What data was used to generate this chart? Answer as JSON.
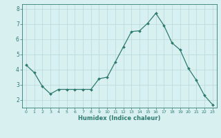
{
  "x": [
    0,
    1,
    2,
    3,
    4,
    5,
    6,
    7,
    8,
    9,
    10,
    11,
    12,
    13,
    14,
    15,
    16,
    17,
    18,
    19,
    20,
    21,
    22,
    23
  ],
  "y": [
    4.3,
    3.8,
    2.9,
    2.4,
    2.7,
    2.7,
    2.7,
    2.7,
    2.7,
    3.4,
    3.5,
    4.5,
    5.5,
    6.5,
    6.55,
    7.05,
    7.7,
    6.9,
    5.75,
    5.3,
    4.1,
    3.3,
    2.3,
    1.7
  ],
  "line_color": "#2d7a6e",
  "marker": "D",
  "markersize": 2.0,
  "linewidth": 0.9,
  "bg_color": "#d9f0f0",
  "grid_color": "#b8d8d8",
  "tick_color": "#2d7a6e",
  "label_color": "#2d7a6e",
  "xlabel": "Humidex (Indice chaleur)",
  "xlabel_fontsize": 6,
  "xlim": [
    -0.5,
    23.5
  ],
  "ylim": [
    1.5,
    8.3
  ],
  "yticks": [
    2,
    3,
    4,
    5,
    6,
    7,
    8
  ],
  "xticks": [
    0,
    1,
    2,
    3,
    4,
    5,
    6,
    7,
    8,
    9,
    10,
    11,
    12,
    13,
    14,
    15,
    16,
    17,
    18,
    19,
    20,
    21,
    22,
    23
  ],
  "tick_labelsize": 4.5,
  "ytick_labelsize": 5.5
}
